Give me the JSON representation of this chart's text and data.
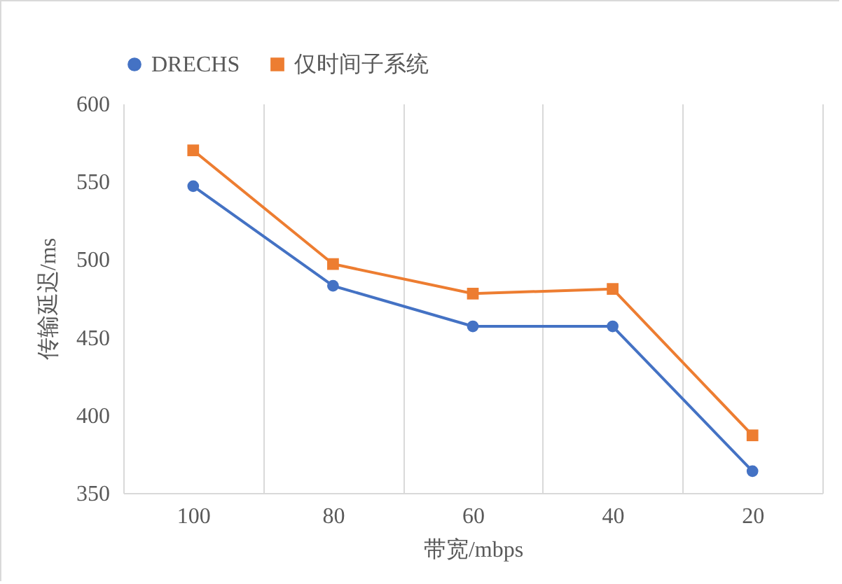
{
  "chart_data": {
    "type": "line",
    "xlabel": "带宽/mbps",
    "ylabel": "传输延迟/ms",
    "categories": [
      "100",
      "80",
      "60",
      "40",
      "20"
    ],
    "series": [
      {
        "name": "DRECHS",
        "color": "#4472c4",
        "marker": "circle",
        "values": [
          547,
          483,
          457,
          457,
          364
        ]
      },
      {
        "name": "仅时间子系统",
        "color": "#ed7d31",
        "marker": "square",
        "values": [
          570,
          497,
          478,
          481,
          387
        ]
      }
    ],
    "ylim": [
      350,
      600
    ],
    "yticks": [
      350,
      400,
      450,
      500,
      550,
      600
    ],
    "grid": "x",
    "legend": "top"
  }
}
